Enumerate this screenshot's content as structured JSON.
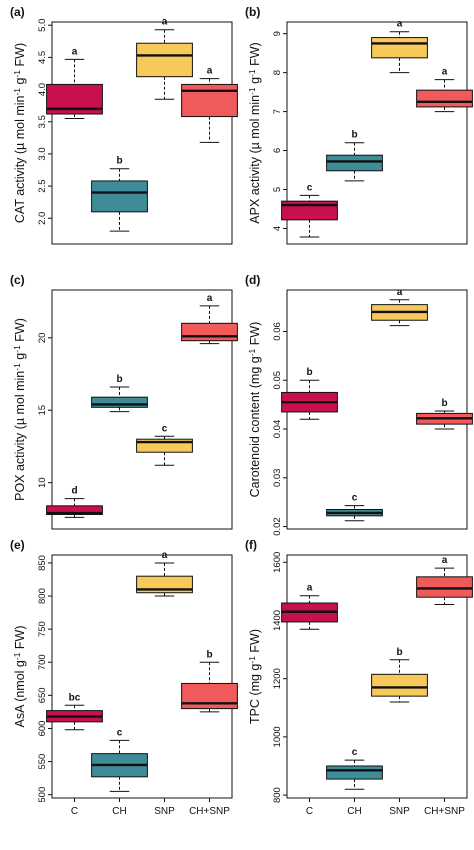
{
  "colors": {
    "C": "#c8104e",
    "CH": "#3f8c99",
    "SNP": "#f6c95a",
    "CH+SNP": "#f05a5a"
  },
  "chart_data": [
    {
      "type": "box",
      "panel": "(a)",
      "ylabel": "CAT activity (µ mol min",
      "ylabel_sup1": "-1",
      "ylabel_mid": " g",
      "ylabel_sup2": "-1",
      "ylabel_end": " FW)",
      "ylim": [
        1.6,
        5.05
      ],
      "yticks": [
        "2.0",
        "2.5",
        "3.0",
        "3.5",
        "4.0",
        "4.5",
        "5.0"
      ],
      "categories": [
        "C",
        "CH",
        "SNP",
        "CH+SNP"
      ],
      "boxes": [
        {
          "category": "C",
          "min": 3.55,
          "q1": 3.62,
          "median": 3.7,
          "q3": 4.08,
          "max": 4.47,
          "sig": "a"
        },
        {
          "category": "CH",
          "min": 1.8,
          "q1": 2.1,
          "median": 2.4,
          "q3": 2.58,
          "max": 2.77,
          "sig": "b"
        },
        {
          "category": "SNP",
          "min": 3.85,
          "q1": 4.2,
          "median": 4.53,
          "q3": 4.72,
          "max": 4.93,
          "sig": "a"
        },
        {
          "category": "CH+SNP",
          "min": 3.18,
          "q1": 3.58,
          "median": 3.98,
          "q3": 4.08,
          "max": 4.17,
          "sig": "a"
        }
      ]
    },
    {
      "type": "box",
      "panel": "(b)",
      "ylabel": "APX activity (µ mol min",
      "ylabel_sup1": "-1",
      "ylabel_mid": " g",
      "ylabel_sup2": "-1",
      "ylabel_end": " FW)",
      "ylim": [
        3.6,
        9.3
      ],
      "yticks": [
        "4",
        "5",
        "6",
        "7",
        "8",
        "9"
      ],
      "categories": [
        "C",
        "CH",
        "SNP",
        "CH+SNP"
      ],
      "boxes": [
        {
          "category": "C",
          "min": 3.78,
          "q1": 4.22,
          "median": 4.6,
          "q3": 4.7,
          "max": 4.85,
          "sig": "c"
        },
        {
          "category": "CH",
          "min": 5.22,
          "q1": 5.48,
          "median": 5.72,
          "q3": 5.88,
          "max": 6.2,
          "sig": "b"
        },
        {
          "category": "SNP",
          "min": 8.0,
          "q1": 8.38,
          "median": 8.75,
          "q3": 8.9,
          "max": 9.05,
          "sig": "a"
        },
        {
          "category": "CH+SNP",
          "min": 7.0,
          "q1": 7.12,
          "median": 7.25,
          "q3": 7.55,
          "max": 7.82,
          "sig": "a"
        }
      ]
    },
    {
      "type": "box",
      "panel": "(c)",
      "ylabel": "POX activity (µ mol min",
      "ylabel_sup1": "-1",
      "ylabel_mid": " g",
      "ylabel_sup2": "-1",
      "ylabel_end": " FW)",
      "ylim": [
        6.8,
        23.3
      ],
      "yticks": [
        "10",
        "15",
        "20"
      ],
      "categories": [
        "C",
        "CH",
        "SNP",
        "CH+SNP"
      ],
      "boxes": [
        {
          "category": "C",
          "min": 7.6,
          "q1": 7.8,
          "median": 7.9,
          "q3": 8.4,
          "max": 8.9,
          "sig": "d"
        },
        {
          "category": "CH",
          "min": 14.9,
          "q1": 15.2,
          "median": 15.4,
          "q3": 15.9,
          "max": 16.6,
          "sig": "b"
        },
        {
          "category": "SNP",
          "min": 11.2,
          "q1": 12.1,
          "median": 12.8,
          "q3": 13.0,
          "max": 13.2,
          "sig": "c"
        },
        {
          "category": "CH+SNP",
          "min": 19.6,
          "q1": 19.8,
          "median": 20.1,
          "q3": 21.0,
          "max": 22.2,
          "sig": "a"
        }
      ]
    },
    {
      "type": "box",
      "panel": "(d)",
      "ylabel": "Carotenoid content (mg g",
      "ylabel_sup1": "-1",
      "ylabel_mid": " FW)",
      "ylabel_sup2": "",
      "ylabel_end": "",
      "ylim": [
        0.0195,
        0.0685
      ],
      "yticks": [
        "0.02",
        "0.03",
        "0.04",
        "0.05",
        "0.06"
      ],
      "categories": [
        "C",
        "CH",
        "SNP",
        "CH+SNP"
      ],
      "boxes": [
        {
          "category": "C",
          "min": 0.042,
          "q1": 0.0435,
          "median": 0.0455,
          "q3": 0.0475,
          "max": 0.05,
          "sig": "b"
        },
        {
          "category": "CH",
          "min": 0.0212,
          "q1": 0.0222,
          "median": 0.0228,
          "q3": 0.0235,
          "max": 0.0243,
          "sig": "c"
        },
        {
          "category": "SNP",
          "min": 0.0612,
          "q1": 0.0623,
          "median": 0.064,
          "q3": 0.0655,
          "max": 0.0665,
          "sig": "a"
        },
        {
          "category": "CH+SNP",
          "min": 0.04,
          "q1": 0.041,
          "median": 0.0422,
          "q3": 0.0432,
          "max": 0.0437,
          "sig": "b"
        }
      ]
    },
    {
      "type": "box",
      "panel": "(e)",
      "ylabel": "AsA (nmol g",
      "ylabel_sup1": "-1",
      "ylabel_mid": " FW)",
      "ylabel_sup2": "",
      "ylabel_end": "",
      "ylim": [
        495,
        862
      ],
      "yticks": [
        "500",
        "550",
        "600",
        "650",
        "700",
        "750",
        "800",
        "850"
      ],
      "categories": [
        "C",
        "CH",
        "SNP",
        "CH+SNP"
      ],
      "boxes": [
        {
          "category": "C",
          "min": 598,
          "q1": 610,
          "median": 618,
          "q3": 627,
          "max": 635,
          "sig": "bc"
        },
        {
          "category": "CH",
          "min": 505,
          "q1": 527,
          "median": 545,
          "q3": 562,
          "max": 582,
          "sig": "c"
        },
        {
          "category": "SNP",
          "min": 800,
          "q1": 805,
          "median": 810,
          "q3": 830,
          "max": 850,
          "sig": "a"
        },
        {
          "category": "CH+SNP",
          "min": 625,
          "q1": 630,
          "median": 638,
          "q3": 668,
          "max": 700,
          "sig": "b"
        }
      ]
    },
    {
      "type": "box",
      "panel": "(f)",
      "ylabel": "TPC (mg g",
      "ylabel_sup1": "-1",
      "ylabel_mid": " FW)",
      "ylabel_sup2": "",
      "ylabel_end": "",
      "ylim": [
        790,
        1625
      ],
      "yticks": [
        "800",
        "1000",
        "1200",
        "1400",
        "1600"
      ],
      "categories": [
        "C",
        "CH",
        "SNP",
        "CH+SNP"
      ],
      "boxes": [
        {
          "category": "C",
          "min": 1370,
          "q1": 1395,
          "median": 1430,
          "q3": 1460,
          "max": 1485,
          "sig": "a"
        },
        {
          "category": "CH",
          "min": 820,
          "q1": 855,
          "median": 885,
          "q3": 900,
          "max": 920,
          "sig": "c"
        },
        {
          "category": "SNP",
          "min": 1120,
          "q1": 1140,
          "median": 1170,
          "q3": 1215,
          "max": 1265,
          "sig": "b"
        },
        {
          "category": "CH+SNP",
          "min": 1455,
          "q1": 1480,
          "median": 1510,
          "q3": 1550,
          "max": 1580,
          "sig": "a"
        }
      ]
    }
  ]
}
